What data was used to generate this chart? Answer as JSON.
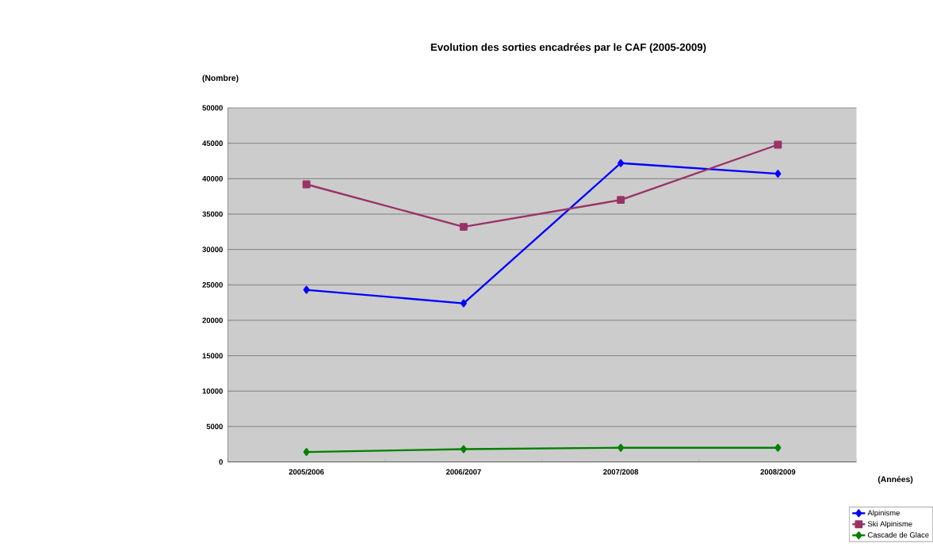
{
  "chart_data": {
    "type": "line",
    "title": "Evolution des sorties encadrées par le CAF (2005-2009)",
    "ylabel": "(Nombre)",
    "xlabel": "(Années)",
    "categories": [
      "2005/2006",
      "2006/2007",
      "2007/2008",
      "2008/2009"
    ],
    "series": [
      {
        "name": "Alpinisme",
        "color": "#0000ff",
        "marker": "diamond",
        "values": [
          24300,
          22400,
          42200,
          40700
        ]
      },
      {
        "name": "Ski Alpinisme",
        "color": "#993366",
        "marker": "square",
        "values": [
          39200,
          33200,
          37000,
          44800
        ]
      },
      {
        "name": "Cascade de Glace",
        "color": "#008000",
        "marker": "diamond",
        "values": [
          1400,
          1800,
          2000,
          2000
        ]
      }
    ],
    "ylim": [
      0,
      50000
    ],
    "yticks": [
      0,
      5000,
      10000,
      15000,
      20000,
      25000,
      30000,
      35000,
      40000,
      45000,
      50000
    ],
    "grid": "y",
    "legend": "bottom right",
    "line_style": "solid"
  }
}
